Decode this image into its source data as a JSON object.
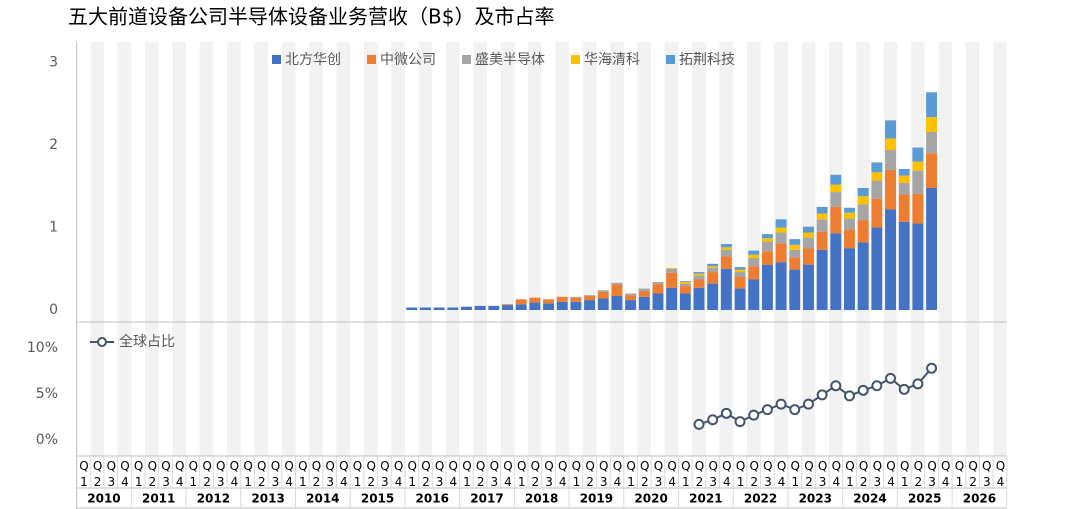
{
  "chart_data": [
    {
      "type": "bar",
      "stacked": true,
      "title": "五大前道设备公司半导体设备业务营收（B$）及市占率",
      "ylim": [
        0,
        3.25
      ],
      "yticks": [
        0,
        1,
        2,
        3
      ],
      "series": [
        {
          "name": "北方华创",
          "color": "#4472c4",
          "values": [
            null,
            null,
            null,
            null,
            null,
            null,
            null,
            null,
            null,
            null,
            null,
            null,
            null,
            null,
            null,
            null,
            null,
            null,
            null,
            null,
            null,
            null,
            null,
            null,
            0.03,
            0.03,
            0.03,
            0.03,
            0.04,
            0.05,
            0.05,
            0.06,
            0.07,
            0.09,
            0.08,
            0.1,
            0.1,
            0.12,
            0.14,
            0.17,
            0.12,
            0.16,
            0.2,
            0.27,
            0.2,
            0.27,
            0.32,
            0.5,
            0.26,
            0.37,
            0.55,
            0.58,
            0.49,
            0.55,
            0.73,
            0.93,
            0.75,
            0.82,
            1.0,
            1.22,
            1.07,
            1.05,
            1.48,
            null,
            null,
            null,
            null,
            null
          ]
        },
        {
          "name": "中微公司",
          "color": "#ed7d31",
          "values": [
            null,
            null,
            null,
            null,
            null,
            null,
            null,
            null,
            null,
            null,
            null,
            null,
            null,
            null,
            null,
            null,
            null,
            null,
            null,
            null,
            null,
            null,
            null,
            null,
            0,
            0,
            0,
            0,
            0,
            0,
            0,
            0.01,
            0.06,
            0.06,
            0.05,
            0.06,
            0.05,
            0.05,
            0.08,
            0.14,
            0.06,
            0.07,
            0.11,
            0.18,
            0.09,
            0.1,
            0.14,
            0.15,
            0.14,
            0.16,
            0.16,
            0.23,
            0.15,
            0.2,
            0.22,
            0.32,
            0.22,
            0.27,
            0.35,
            0.48,
            0.33,
            0.36,
            0.42,
            null,
            null,
            null,
            null,
            null
          ]
        },
        {
          "name": "盛美半导体",
          "color": "#a5a5a5",
          "values": [
            null,
            null,
            null,
            null,
            null,
            null,
            null,
            null,
            null,
            null,
            null,
            null,
            null,
            null,
            null,
            null,
            null,
            null,
            null,
            null,
            null,
            null,
            null,
            null,
            0,
            0,
            0,
            0,
            0,
            0,
            0,
            0,
            0,
            0,
            0,
            0,
            0.01,
            0.01,
            0.02,
            0.02,
            0.02,
            0.03,
            0.03,
            0.05,
            0.03,
            0.05,
            0.05,
            0.08,
            0.06,
            0.1,
            0.12,
            0.13,
            0.09,
            0.13,
            0.15,
            0.18,
            0.14,
            0.19,
            0.22,
            0.24,
            0.14,
            0.28,
            0.26,
            null,
            null,
            null,
            null,
            null
          ]
        },
        {
          "name": "华海清科",
          "color": "#ffc000",
          "values": [
            null,
            null,
            null,
            null,
            null,
            null,
            null,
            null,
            null,
            null,
            null,
            null,
            null,
            null,
            null,
            null,
            null,
            null,
            null,
            null,
            null,
            null,
            null,
            null,
            0,
            0,
            0,
            0,
            0,
            0,
            0,
            0,
            0,
            0,
            0,
            0,
            0,
            0,
            0,
            0,
            0,
            0,
            0,
            0.01,
            0.02,
            0.02,
            0.02,
            0.03,
            0.03,
            0.04,
            0.04,
            0.06,
            0.06,
            0.06,
            0.07,
            0.09,
            0.07,
            0.1,
            0.1,
            0.14,
            0.09,
            0.11,
            0.18,
            null,
            null,
            null,
            null,
            null
          ]
        },
        {
          "name": "拓荆科技",
          "color": "#5b9bd5",
          "values": [
            null,
            null,
            null,
            null,
            null,
            null,
            null,
            null,
            null,
            null,
            null,
            null,
            null,
            null,
            null,
            null,
            null,
            null,
            null,
            null,
            null,
            null,
            null,
            null,
            0,
            0,
            0,
            0,
            0,
            0,
            0,
            0,
            0,
            0,
            0,
            0,
            0,
            0,
            0,
            0,
            0,
            0,
            0,
            0,
            0.01,
            0.02,
            0.03,
            0.04,
            0.03,
            0.05,
            0.05,
            0.1,
            0.07,
            0.07,
            0.08,
            0.12,
            0.06,
            0.1,
            0.12,
            0.22,
            0.08,
            0.17,
            0.3,
            null,
            null,
            null,
            null,
            null
          ]
        }
      ]
    },
    {
      "type": "line",
      "ylim": [
        -1.5,
        12.5
      ],
      "yticks": [
        {
          "value": 0,
          "label": "0%"
        },
        {
          "value": 5,
          "label": "5%"
        },
        {
          "value": 10,
          "label": "10%"
        }
      ],
      "categories": [
        "Q1",
        "Q2",
        "Q3",
        "Q4",
        "Q1",
        "Q2",
        "Q3",
        "Q4",
        "Q1",
        "Q2",
        "Q3",
        "Q4",
        "Q1",
        "Q2",
        "Q3",
        "Q4",
        "Q1",
        "Q2",
        "Q3",
        "Q4",
        "Q1",
        "Q2",
        "Q3",
        "Q4",
        "Q1",
        "Q2",
        "Q3",
        "Q4",
        "Q1",
        "Q2",
        "Q3",
        "Q4",
        "Q1",
        "Q2",
        "Q3",
        "Q4",
        "Q1",
        "Q2",
        "Q3",
        "Q4",
        "Q1",
        "Q2",
        "Q3",
        "Q4",
        "Q1",
        "Q2",
        "Q3",
        "Q4",
        "Q1",
        "Q2",
        "Q3",
        "Q4",
        "Q1",
        "Q2",
        "Q3",
        "Q4",
        "Q1",
        "Q2",
        "Q3",
        "Q4",
        "Q1",
        "Q2",
        "Q3",
        "Q4",
        "Q1",
        "Q2",
        "Q3",
        "Q4"
      ],
      "years": [
        "2010",
        "2011",
        "2012",
        "2013",
        "2014",
        "2015",
        "2016",
        "2017",
        "2018",
        "2019",
        "2020",
        "2021",
        "2022",
        "2023",
        "2024",
        "2025",
        "2026"
      ],
      "series": [
        {
          "name": "全球占比",
          "color": "#44546a",
          "values": [
            null,
            null,
            null,
            null,
            null,
            null,
            null,
            null,
            null,
            null,
            null,
            null,
            null,
            null,
            null,
            null,
            null,
            null,
            null,
            null,
            null,
            null,
            null,
            null,
            null,
            null,
            null,
            null,
            null,
            null,
            null,
            null,
            null,
            null,
            null,
            null,
            null,
            null,
            null,
            null,
            null,
            null,
            null,
            null,
            null,
            1.7,
            2.2,
            2.9,
            2.0,
            2.7,
            3.3,
            3.9,
            3.3,
            3.9,
            4.9,
            5.9,
            4.8,
            5.4,
            5.9,
            6.7,
            5.5,
            6.1,
            7.8,
            null,
            null,
            null,
            null,
            null
          ]
        }
      ]
    }
  ]
}
